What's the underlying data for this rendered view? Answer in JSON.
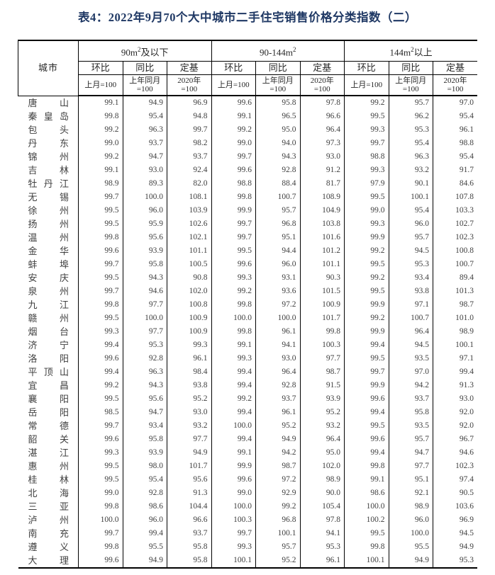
{
  "title": "表4：2022年9月70个大中城市二手住宅销售价格分类指数（二）",
  "table": {
    "city_header": "城市",
    "groups": [
      {
        "pre": "90m",
        "sup": "2",
        "post": "及以下"
      },
      {
        "pre": "90-144m",
        "sup": "2",
        "post": ""
      },
      {
        "pre": "144m",
        "sup": "2",
        "post": "以上"
      }
    ],
    "metric_headers": [
      "环比",
      "同比",
      "定基"
    ],
    "base_headers": {
      "mom_line1": "上月=100",
      "yoy_line1": "上年同月",
      "yoy_line2": "=100",
      "fix_line1": "2020年",
      "fix_line2": "=100"
    },
    "rows": [
      {
        "city": "唐山",
        "values": [
          "99.1",
          "94.9",
          "96.9",
          "99.6",
          "95.8",
          "97.8",
          "99.2",
          "95.7",
          "97.0"
        ]
      },
      {
        "city": "秦皇岛",
        "values": [
          "99.8",
          "95.4",
          "94.8",
          "99.1",
          "96.5",
          "96.6",
          "99.5",
          "96.2",
          "95.4"
        ]
      },
      {
        "city": "包头",
        "values": [
          "99.2",
          "96.3",
          "99.7",
          "99.2",
          "95.0",
          "96.4",
          "99.3",
          "95.3",
          "96.1"
        ]
      },
      {
        "city": "丹东",
        "values": [
          "99.0",
          "93.7",
          "98.2",
          "99.0",
          "94.0",
          "97.3",
          "99.7",
          "95.4",
          "98.8"
        ]
      },
      {
        "city": "锦州",
        "values": [
          "99.2",
          "94.7",
          "93.7",
          "99.7",
          "94.3",
          "93.0",
          "98.8",
          "96.3",
          "95.4"
        ]
      },
      {
        "city": "吉林",
        "values": [
          "99.1",
          "93.0",
          "92.4",
          "99.6",
          "92.8",
          "91.2",
          "99.3",
          "93.2",
          "91.7"
        ]
      },
      {
        "city": "牡丹江",
        "values": [
          "98.9",
          "89.3",
          "82.0",
          "98.8",
          "88.4",
          "81.7",
          "97.9",
          "90.1",
          "84.6"
        ]
      },
      {
        "city": "无锡",
        "values": [
          "99.7",
          "100.0",
          "108.1",
          "99.8",
          "100.7",
          "108.9",
          "99.5",
          "100.1",
          "107.8"
        ]
      },
      {
        "city": "徐州",
        "values": [
          "99.5",
          "96.0",
          "103.9",
          "99.9",
          "95.7",
          "104.9",
          "99.0",
          "95.4",
          "103.3"
        ]
      },
      {
        "city": "扬州",
        "values": [
          "99.5",
          "95.9",
          "102.6",
          "99.7",
          "96.8",
          "103.8",
          "99.3",
          "96.0",
          "102.7"
        ]
      },
      {
        "city": "温州",
        "values": [
          "99.8",
          "95.6",
          "102.1",
          "99.7",
          "95.1",
          "101.6",
          "99.9",
          "95.7",
          "102.3"
        ]
      },
      {
        "city": "金华",
        "values": [
          "99.6",
          "93.9",
          "101.1",
          "99.5",
          "94.4",
          "101.2",
          "99.2",
          "94.5",
          "100.8"
        ]
      },
      {
        "city": "蚌埠",
        "values": [
          "99.7",
          "95.8",
          "100.5",
          "99.6",
          "96.0",
          "101.1",
          "99.5",
          "95.3",
          "100.7"
        ]
      },
      {
        "city": "安庆",
        "values": [
          "99.5",
          "94.3",
          "90.8",
          "99.3",
          "93.1",
          "90.3",
          "99.2",
          "93.4",
          "89.4"
        ]
      },
      {
        "city": "泉州",
        "values": [
          "99.7",
          "94.6",
          "102.0",
          "99.2",
          "93.6",
          "101.5",
          "99.5",
          "93.8",
          "101.3"
        ]
      },
      {
        "city": "九江",
        "values": [
          "99.8",
          "97.7",
          "100.8",
          "99.8",
          "97.2",
          "100.9",
          "99.9",
          "97.1",
          "98.7"
        ]
      },
      {
        "city": "赣州",
        "values": [
          "99.5",
          "100.0",
          "100.9",
          "100.0",
          "100.0",
          "101.7",
          "99.2",
          "100.7",
          "101.0"
        ]
      },
      {
        "city": "烟台",
        "values": [
          "99.3",
          "97.7",
          "100.9",
          "99.8",
          "96.1",
          "99.8",
          "99.9",
          "96.4",
          "98.9"
        ]
      },
      {
        "city": "济宁",
        "values": [
          "99.4",
          "95.3",
          "99.3",
          "99.1",
          "94.1",
          "100.3",
          "99.4",
          "94.5",
          "100.1"
        ]
      },
      {
        "city": "洛阳",
        "values": [
          "99.6",
          "92.8",
          "96.1",
          "99.3",
          "93.0",
          "97.7",
          "99.5",
          "93.5",
          "97.1"
        ]
      },
      {
        "city": "平顶山",
        "values": [
          "99.4",
          "96.3",
          "98.4",
          "99.4",
          "96.4",
          "98.7",
          "99.7",
          "97.0",
          "99.4"
        ]
      },
      {
        "city": "宜昌",
        "values": [
          "99.2",
          "94.3",
          "93.8",
          "99.4",
          "92.8",
          "91.5",
          "99.9",
          "94.2",
          "91.3"
        ]
      },
      {
        "city": "襄阳",
        "values": [
          "99.5",
          "95.6",
          "95.2",
          "99.2",
          "93.7",
          "93.9",
          "99.6",
          "93.7",
          "93.0"
        ]
      },
      {
        "city": "岳阳",
        "values": [
          "98.5",
          "94.7",
          "93.0",
          "99.4",
          "96.1",
          "95.2",
          "99.4",
          "95.8",
          "92.0"
        ]
      },
      {
        "city": "常德",
        "values": [
          "99.7",
          "93.4",
          "93.2",
          "100.0",
          "95.2",
          "93.2",
          "99.5",
          "93.5",
          "92.0"
        ]
      },
      {
        "city": "韶关",
        "values": [
          "99.6",
          "95.8",
          "97.7",
          "99.4",
          "94.9",
          "96.4",
          "99.6",
          "95.7",
          "96.7"
        ]
      },
      {
        "city": "湛江",
        "values": [
          "99.3",
          "93.9",
          "94.9",
          "99.1",
          "94.2",
          "95.0",
          "99.4",
          "94.7",
          "94.6"
        ]
      },
      {
        "city": "惠州",
        "values": [
          "99.5",
          "98.0",
          "101.7",
          "99.9",
          "98.7",
          "102.0",
          "99.8",
          "97.7",
          "102.3"
        ]
      },
      {
        "city": "桂林",
        "values": [
          "99.5",
          "95.4",
          "95.6",
          "99.6",
          "97.2",
          "98.9",
          "99.1",
          "95.1",
          "97.4"
        ]
      },
      {
        "city": "北海",
        "values": [
          "99.0",
          "92.8",
          "91.3",
          "99.0",
          "92.9",
          "90.0",
          "98.6",
          "92.1",
          "90.5"
        ]
      },
      {
        "city": "三亚",
        "values": [
          "99.8",
          "98.6",
          "104.4",
          "100.0",
          "99.2",
          "105.4",
          "100.0",
          "98.9",
          "103.6"
        ]
      },
      {
        "city": "泸州",
        "values": [
          "100.0",
          "96.0",
          "96.6",
          "100.3",
          "96.8",
          "97.8",
          "100.2",
          "96.0",
          "96.9"
        ]
      },
      {
        "city": "南充",
        "values": [
          "99.7",
          "99.4",
          "93.7",
          "99.7",
          "100.1",
          "94.1",
          "99.5",
          "100.0",
          "94.5"
        ]
      },
      {
        "city": "遵义",
        "values": [
          "99.8",
          "95.5",
          "95.8",
          "99.3",
          "95.7",
          "95.3",
          "99.8",
          "95.5",
          "94.9"
        ]
      },
      {
        "city": "大理",
        "values": [
          "99.6",
          "94.9",
          "95.8",
          "100.1",
          "95.2",
          "96.1",
          "100.1",
          "94.9",
          "95.3"
        ]
      }
    ]
  },
  "colors": {
    "title": "#1f3864",
    "border": "#000000",
    "text": "#404040"
  }
}
